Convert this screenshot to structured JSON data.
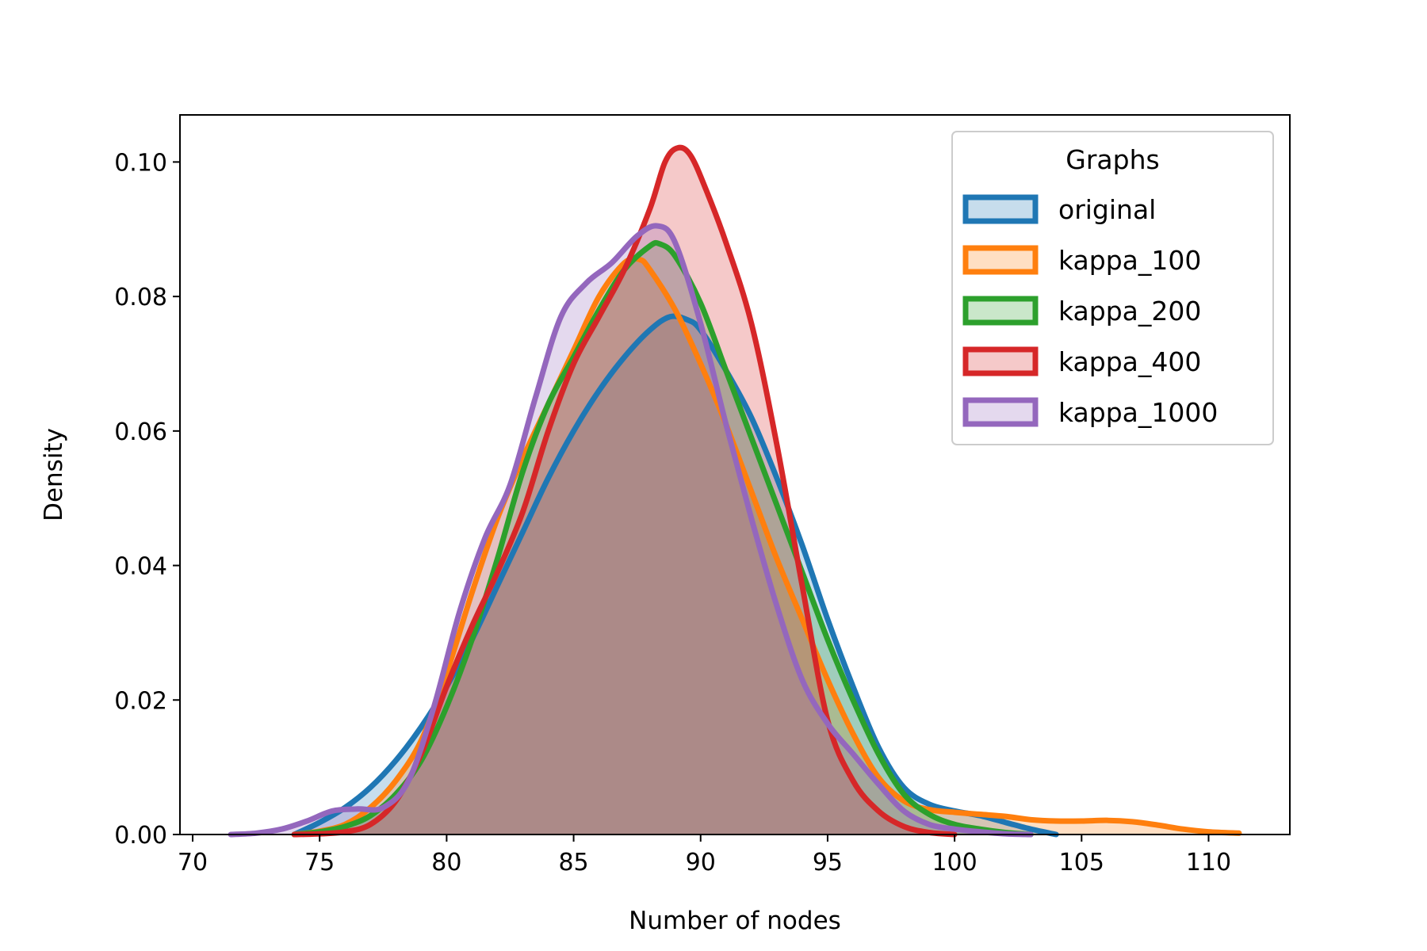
{
  "chart_data": {
    "type": "area",
    "title": "",
    "xlabel": "Number of nodes",
    "ylabel": "Density",
    "xlim": [
      69.5,
      113.2
    ],
    "ylim": [
      0,
      0.107
    ],
    "x_ticks": [
      70,
      75,
      80,
      85,
      90,
      95,
      100,
      105,
      110
    ],
    "y_ticks": [
      0.0,
      0.02,
      0.04,
      0.06,
      0.08,
      0.1
    ],
    "x_tick_labels": [
      "70",
      "75",
      "80",
      "85",
      "90",
      "95",
      "100",
      "105",
      "110"
    ],
    "y_tick_labels": [
      "0.00",
      "0.02",
      "0.04",
      "0.06",
      "0.08",
      "0.10"
    ],
    "grid": false,
    "legend": {
      "title": "Graphs",
      "position": "top-right"
    },
    "series": [
      {
        "name": "original",
        "color": "#1f77b4",
        "points": [
          [
            74,
            0
          ],
          [
            75,
            0.0018
          ],
          [
            76,
            0.004
          ],
          [
            77,
            0.007
          ],
          [
            78,
            0.011
          ],
          [
            79,
            0.016
          ],
          [
            80,
            0.022
          ],
          [
            81,
            0.029
          ],
          [
            82,
            0.037
          ],
          [
            83,
            0.045
          ],
          [
            84,
            0.053
          ],
          [
            85,
            0.06
          ],
          [
            86,
            0.066
          ],
          [
            87,
            0.071
          ],
          [
            88,
            0.075
          ],
          [
            88.8,
            0.077
          ],
          [
            89.5,
            0.0765
          ],
          [
            90,
            0.075
          ],
          [
            91,
            0.069
          ],
          [
            92,
            0.062
          ],
          [
            93,
            0.053
          ],
          [
            94,
            0.043
          ],
          [
            95,
            0.032
          ],
          [
            96,
            0.022
          ],
          [
            97,
            0.013
          ],
          [
            98,
            0.007
          ],
          [
            99,
            0.0045
          ],
          [
            100,
            0.0035
          ],
          [
            101,
            0.0028
          ],
          [
            102,
            0.0018
          ],
          [
            103,
            0.0008
          ],
          [
            104,
            0
          ]
        ]
      },
      {
        "name": "kappa_100",
        "color": "#ff7f0e",
        "points": [
          [
            74,
            0
          ],
          [
            75,
            0.0005
          ],
          [
            76,
            0.0015
          ],
          [
            77,
            0.004
          ],
          [
            78,
            0.008
          ],
          [
            79,
            0.014
          ],
          [
            80,
            0.024
          ],
          [
            81,
            0.036
          ],
          [
            82,
            0.047
          ],
          [
            83,
            0.056
          ],
          [
            84,
            0.064
          ],
          [
            85,
            0.072
          ],
          [
            86,
            0.08
          ],
          [
            87,
            0.085
          ],
          [
            87.6,
            0.0855
          ],
          [
            88,
            0.084
          ],
          [
            89,
            0.078
          ],
          [
            90,
            0.07
          ],
          [
            91,
            0.061
          ],
          [
            92,
            0.051
          ],
          [
            93,
            0.041
          ],
          [
            94,
            0.032
          ],
          [
            95,
            0.023
          ],
          [
            96,
            0.015
          ],
          [
            97,
            0.0085
          ],
          [
            98,
            0.005
          ],
          [
            99,
            0.0037
          ],
          [
            100,
            0.0033
          ],
          [
            101,
            0.003
          ],
          [
            102,
            0.0027
          ],
          [
            103,
            0.0022
          ],
          [
            104,
            0.002
          ],
          [
            105,
            0.002
          ],
          [
            106,
            0.0021
          ],
          [
            107,
            0.0019
          ],
          [
            108,
            0.0014
          ],
          [
            109,
            0.0008
          ],
          [
            110,
            0.0004
          ],
          [
            111.2,
            0.0002
          ]
        ]
      },
      {
        "name": "kappa_200",
        "color": "#2ca02c",
        "points": [
          [
            74,
            0
          ],
          [
            75,
            0.0004
          ],
          [
            76,
            0.0012
          ],
          [
            77,
            0.0028
          ],
          [
            78,
            0.006
          ],
          [
            79,
            0.011
          ],
          [
            80,
            0.019
          ],
          [
            81,
            0.029
          ],
          [
            82,
            0.041
          ],
          [
            83,
            0.054
          ],
          [
            84,
            0.064
          ],
          [
            85,
            0.071
          ],
          [
            86,
            0.078
          ],
          [
            87,
            0.084
          ],
          [
            88,
            0.0875
          ],
          [
            88.4,
            0.0878
          ],
          [
            89,
            0.086
          ],
          [
            90,
            0.079
          ],
          [
            91,
            0.069
          ],
          [
            92,
            0.059
          ],
          [
            93,
            0.049
          ],
          [
            94,
            0.039
          ],
          [
            95,
            0.029
          ],
          [
            96,
            0.02
          ],
          [
            97,
            0.012
          ],
          [
            98,
            0.006
          ],
          [
            99,
            0.003
          ],
          [
            100,
            0.0015
          ],
          [
            101,
            0.0008
          ],
          [
            102,
            0.0003
          ],
          [
            103,
            0
          ]
        ]
      },
      {
        "name": "kappa_400",
        "color": "#d62728",
        "points": [
          [
            74,
            0
          ],
          [
            75,
            0.0001
          ],
          [
            76,
            0.0004
          ],
          [
            77,
            0.0015
          ],
          [
            78,
            0.005
          ],
          [
            79,
            0.012
          ],
          [
            80,
            0.022
          ],
          [
            81,
            0.031
          ],
          [
            82,
            0.039
          ],
          [
            83,
            0.048
          ],
          [
            84,
            0.06
          ],
          [
            85,
            0.07
          ],
          [
            86,
            0.077
          ],
          [
            87,
            0.084
          ],
          [
            88,
            0.093
          ],
          [
            88.6,
            0.1
          ],
          [
            89.1,
            0.1021
          ],
          [
            89.6,
            0.101
          ],
          [
            90.2,
            0.096
          ],
          [
            91,
            0.088
          ],
          [
            92,
            0.076
          ],
          [
            93,
            0.058
          ],
          [
            94,
            0.037
          ],
          [
            95,
            0.017
          ],
          [
            96,
            0.008
          ],
          [
            97,
            0.0035
          ],
          [
            98,
            0.0012
          ],
          [
            99,
            0.0003
          ],
          [
            100,
            0
          ]
        ]
      },
      {
        "name": "kappa_1000",
        "color": "#9467bd",
        "points": [
          [
            71.5,
            0
          ],
          [
            72.5,
            0.0002
          ],
          [
            73.5,
            0.0008
          ],
          [
            74.5,
            0.002
          ],
          [
            75.5,
            0.0035
          ],
          [
            76.5,
            0.0038
          ],
          [
            77.5,
            0.004
          ],
          [
            78.5,
            0.008
          ],
          [
            79.5,
            0.019
          ],
          [
            80.5,
            0.033
          ],
          [
            81.5,
            0.044
          ],
          [
            82.5,
            0.052
          ],
          [
            83.5,
            0.065
          ],
          [
            84.5,
            0.077
          ],
          [
            85.5,
            0.082
          ],
          [
            86.5,
            0.085
          ],
          [
            87.5,
            0.089
          ],
          [
            88.3,
            0.0905
          ],
          [
            89,
            0.088
          ],
          [
            90,
            0.076
          ],
          [
            91,
            0.061
          ],
          [
            92,
            0.047
          ],
          [
            93,
            0.034
          ],
          [
            94,
            0.023
          ],
          [
            95,
            0.0165
          ],
          [
            96,
            0.012
          ],
          [
            97,
            0.0075
          ],
          [
            98,
            0.0035
          ],
          [
            99,
            0.0015
          ],
          [
            100,
            0.0008
          ],
          [
            101,
            0.0004
          ],
          [
            102,
            0.0001
          ],
          [
            103,
            0
          ]
        ]
      }
    ]
  }
}
